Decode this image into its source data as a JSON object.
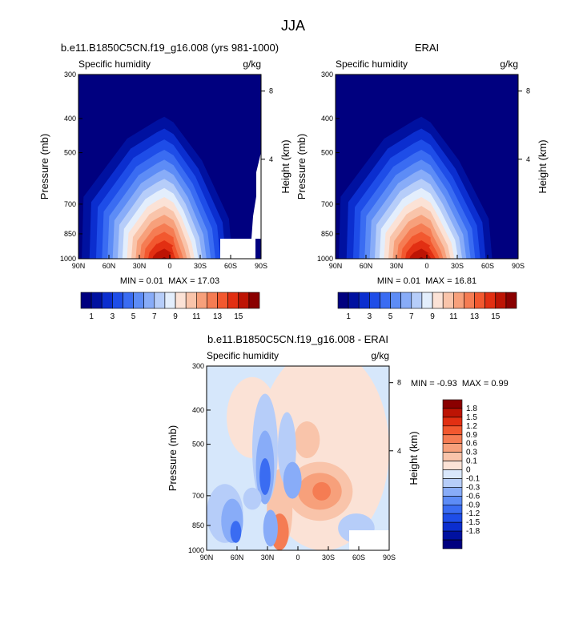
{
  "figure_title": "JJA",
  "chart_data": [
    {
      "type": "contour",
      "title": "b.e11.B1850C5CN.f19_g16.008 (yrs 981-1000)",
      "left_label": "Specific humidity",
      "right_label": "g/kg",
      "ylabel": "Pressure (mb)",
      "ylabel_right": "Height (km)",
      "x_ticks": [
        "90N",
        "60N",
        "30N",
        "0",
        "30S",
        "60S",
        "90S"
      ],
      "y_ticks": [
        "300",
        "400",
        "500",
        "700",
        "850",
        "1000"
      ],
      "y_ticks_right": [
        "8",
        "4"
      ],
      "min_label": "MIN =",
      "min_value": "0.01",
      "max_label": "MAX =",
      "max_value": "17.03",
      "masked_region": "near-surface south of 55S",
      "colorbar_labels": [
        "1",
        "3",
        "5",
        "7",
        "9",
        "11",
        "13",
        "15"
      ]
    },
    {
      "type": "contour",
      "title": "ERAI",
      "left_label": "Specific humidity",
      "right_label": "g/kg",
      "ylabel": "Pressure (mb)",
      "ylabel_right": "Height (km)",
      "x_ticks": [
        "90N",
        "60N",
        "30N",
        "0",
        "30S",
        "60S",
        "90S"
      ],
      "y_ticks": [
        "300",
        "400",
        "500",
        "700",
        "850",
        "1000"
      ],
      "y_ticks_right": [
        "8",
        "4"
      ],
      "min_label": "MIN =",
      "min_value": "0.01",
      "max_label": "MAX =",
      "max_value": "16.81",
      "colorbar_labels": [
        "1",
        "3",
        "5",
        "7",
        "9",
        "11",
        "13",
        "15"
      ]
    },
    {
      "type": "contour",
      "title": "b.e11.B1850C5CN.f19_g16.008 - ERAI",
      "left_label": "Specific humidity",
      "right_label": "g/kg",
      "ylabel": "Pressure (mb)",
      "ylabel_right": "Height (km)",
      "x_ticks": [
        "90N",
        "60N",
        "30N",
        "0",
        "30S",
        "60S",
        "90S"
      ],
      "y_ticks": [
        "300",
        "400",
        "500",
        "700",
        "850",
        "1000"
      ],
      "y_ticks_right": [
        "8",
        "4"
      ],
      "min_label": "MIN =",
      "min_value": "-0.93",
      "max_label": "MAX =",
      "max_value": "0.99",
      "colorbar_labels": [
        "1.8",
        "1.5",
        "1.2",
        "0.9",
        "0.6",
        "0.3",
        "0.1",
        "0",
        "-0.1",
        "-0.3",
        "-0.6",
        "-0.9",
        "-1.2",
        "-1.5",
        "-1.8"
      ]
    }
  ],
  "colors": {
    "abs_scale": [
      "#00007f",
      "#0011a0",
      "#0b2ecf",
      "#1e4de8",
      "#3a6cf2",
      "#5d8cf6",
      "#88acf8",
      "#b6cdf9",
      "#e3eefc",
      "#fbe2d6",
      "#f9c4aa",
      "#f7a07b",
      "#f57c53",
      "#f2582f",
      "#e22f12",
      "#bd1404",
      "#8a0000"
    ],
    "diff_scale": [
      "#00007f",
      "#0011a0",
      "#0b2ecf",
      "#1e4de8",
      "#3a6cf2",
      "#5d8cf6",
      "#88acf8",
      "#b6cdf9",
      "#d9e7fb",
      "#fbe2d6",
      "#f9c4aa",
      "#f7a07b",
      "#f57c53",
      "#f2582f",
      "#e22f12",
      "#bd1404",
      "#8a0000"
    ],
    "diff_background": "#d6e7fb"
  }
}
